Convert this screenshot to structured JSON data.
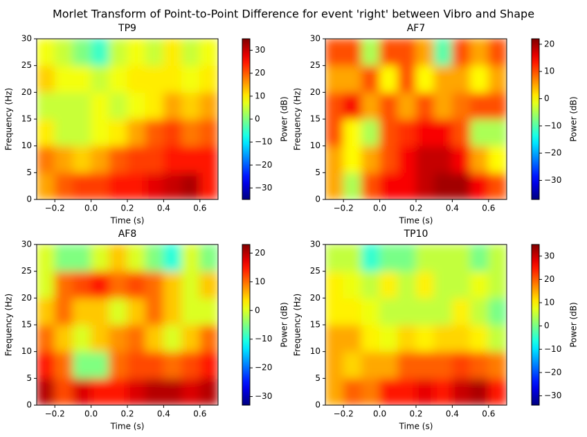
{
  "title": "Morlet Transform of Point-to-Point Difference for event 'right' between Vibro and Shape",
  "chart_data": [
    {
      "type": "heatmap",
      "title": "TP9",
      "xlabel": "Time (s)",
      "ylabel": "Frequency (Hz)",
      "colorbar_label": "Power (dB)",
      "colormap": "jet",
      "x": [
        -0.25,
        -0.15,
        -0.05,
        0.05,
        0.15,
        0.25,
        0.35,
        0.45,
        0.55,
        0.65
      ],
      "y": [
        2.5,
        7.5,
        12.5,
        17.5,
        22.5,
        27.5
      ],
      "z": [
        [
          15,
          20,
          22,
          22,
          25,
          25,
          28,
          30,
          32,
          25
        ],
        [
          18,
          15,
          12,
          15,
          20,
          22,
          22,
          25,
          25,
          25
        ],
        [
          10,
          5,
          5,
          8,
          10,
          15,
          20,
          22,
          18,
          20
        ],
        [
          5,
          5,
          5,
          8,
          5,
          8,
          10,
          15,
          12,
          15
        ],
        [
          12,
          8,
          8,
          5,
          8,
          10,
          10,
          10,
          8,
          10
        ],
        [
          8,
          5,
          0,
          -5,
          5,
          8,
          5,
          10,
          5,
          8
        ]
      ],
      "xlim": [
        -0.3,
        0.7
      ],
      "xticks": [
        {
          "value": -0.2,
          "label": "−0.2"
        },
        {
          "value": 0,
          "label": "0.0"
        },
        0.2,
        0.4,
        0.6
      ],
      "ylim": [
        0,
        30
      ],
      "yticks": [
        0,
        5,
        10,
        15,
        20,
        25,
        30
      ],
      "zlim": [
        -35,
        35
      ],
      "zticks": [
        {
          "value": -30,
          "label": "−30"
        },
        {
          "value": -20,
          "label": "−20"
        },
        {
          "value": -10,
          "label": "−10"
        },
        0,
        10,
        20,
        30
      ]
    },
    {
      "type": "heatmap",
      "title": "AF7",
      "xlabel": "Time (s)",
      "ylabel": "Frequency (Hz)",
      "colorbar_label": "Power (dB)",
      "colormap": "jet",
      "x": [
        -0.25,
        -0.15,
        -0.05,
        0.05,
        0.15,
        0.25,
        0.35,
        0.45,
        0.55,
        0.65
      ],
      "y": [
        2.5,
        7.5,
        12.5,
        17.5,
        22.5,
        27.5
      ],
      "z": [
        [
          5,
          -5,
          10,
          15,
          15,
          18,
          20,
          20,
          15,
          10
        ],
        [
          5,
          0,
          5,
          10,
          15,
          18,
          18,
          15,
          5,
          0
        ],
        [
          10,
          0,
          -5,
          10,
          12,
          15,
          15,
          10,
          -5,
          -5
        ],
        [
          10,
          15,
          5,
          10,
          5,
          10,
          5,
          8,
          10,
          10
        ],
        [
          5,
          5,
          10,
          0,
          10,
          0,
          5,
          5,
          0,
          5
        ],
        [
          10,
          10,
          -5,
          10,
          10,
          5,
          -10,
          10,
          5,
          10
        ]
      ],
      "xlim": [
        -0.3,
        0.7
      ],
      "xticks": [
        {
          "value": -0.2,
          "label": "−0.2"
        },
        {
          "value": 0,
          "label": "0.0"
        },
        0.2,
        0.4,
        0.6
      ],
      "ylim": [
        0,
        30
      ],
      "yticks": [
        0,
        5,
        10,
        15,
        20,
        25,
        30
      ],
      "zlim": [
        -37,
        22
      ],
      "zticks": [
        {
          "value": -30,
          "label": "−30"
        },
        {
          "value": -20,
          "label": "−20"
        },
        {
          "value": -10,
          "label": "−10"
        },
        0,
        10,
        20
      ]
    },
    {
      "type": "heatmap",
      "title": "AF8",
      "xlabel": "Time (s)",
      "ylabel": "Frequency (Hz)",
      "colorbar_label": "Power (dB)",
      "colormap": "jet",
      "x": [
        -0.25,
        -0.15,
        -0.05,
        0.05,
        0.15,
        0.25,
        0.35,
        0.45,
        0.55,
        0.65
      ],
      "y": [
        2.5,
        7.5,
        12.5,
        17.5,
        22.5,
        27.5
      ],
      "z": [
        [
          20,
          12,
          18,
          15,
          15,
          18,
          20,
          20,
          18,
          20
        ],
        [
          15,
          10,
          -5,
          -5,
          10,
          12,
          12,
          10,
          12,
          15
        ],
        [
          10,
          5,
          0,
          5,
          8,
          10,
          5,
          0,
          5,
          10
        ],
        [
          5,
          10,
          5,
          5,
          0,
          5,
          10,
          5,
          0,
          0
        ],
        [
          0,
          10,
          12,
          15,
          10,
          12,
          10,
          5,
          0,
          5
        ],
        [
          0,
          -5,
          -5,
          0,
          5,
          0,
          -5,
          -10,
          0,
          -5
        ]
      ],
      "xlim": [
        -0.3,
        0.7
      ],
      "xticks": [
        {
          "value": -0.2,
          "label": "−0.2"
        },
        {
          "value": 0,
          "label": "0.0"
        },
        0.2,
        0.4,
        0.6
      ],
      "ylim": [
        0,
        30
      ],
      "yticks": [
        0,
        5,
        10,
        15,
        20,
        25,
        30
      ],
      "zlim": [
        -33,
        23
      ],
      "zticks": [
        {
          "value": -30,
          "label": "−30"
        },
        {
          "value": -20,
          "label": "−20"
        },
        {
          "value": -10,
          "label": "−10"
        },
        0,
        10,
        20
      ]
    },
    {
      "type": "heatmap",
      "title": "TP10",
      "xlabel": "Time (s)",
      "ylabel": "Frequency (Hz)",
      "colorbar_label": "Power (dB)",
      "colormap": "jet",
      "x": [
        -0.25,
        -0.15,
        -0.05,
        0.05,
        0.15,
        0.25,
        0.35,
        0.45,
        0.55,
        0.65
      ],
      "y": [
        2.5,
        7.5,
        12.5,
        17.5,
        22.5,
        27.5
      ],
      "z": [
        [
          15,
          20,
          18,
          25,
          25,
          28,
          25,
          30,
          32,
          25
        ],
        [
          15,
          12,
          15,
          15,
          20,
          20,
          20,
          22,
          20,
          18
        ],
        [
          15,
          15,
          10,
          8,
          12,
          10,
          12,
          12,
          10,
          5
        ],
        [
          10,
          10,
          8,
          5,
          5,
          5,
          5,
          10,
          5,
          0
        ],
        [
          10,
          8,
          5,
          10,
          5,
          10,
          5,
          5,
          8,
          5
        ],
        [
          5,
          5,
          -5,
          0,
          0,
          5,
          5,
          5,
          0,
          5
        ]
      ],
      "xlim": [
        -0.3,
        0.7
      ],
      "xticks": [
        {
          "value": -0.2,
          "label": "−0.2"
        },
        {
          "value": 0,
          "label": "0.0"
        },
        0.2,
        0.4,
        0.6
      ],
      "ylim": [
        0,
        30
      ],
      "yticks": [
        0,
        5,
        10,
        15,
        20,
        25,
        30
      ],
      "zlim": [
        -34,
        35
      ],
      "zticks": [
        {
          "value": -30,
          "label": "−30"
        },
        {
          "value": -20,
          "label": "−20"
        },
        {
          "value": -10,
          "label": "−10"
        },
        0,
        10,
        20,
        30
      ]
    }
  ]
}
